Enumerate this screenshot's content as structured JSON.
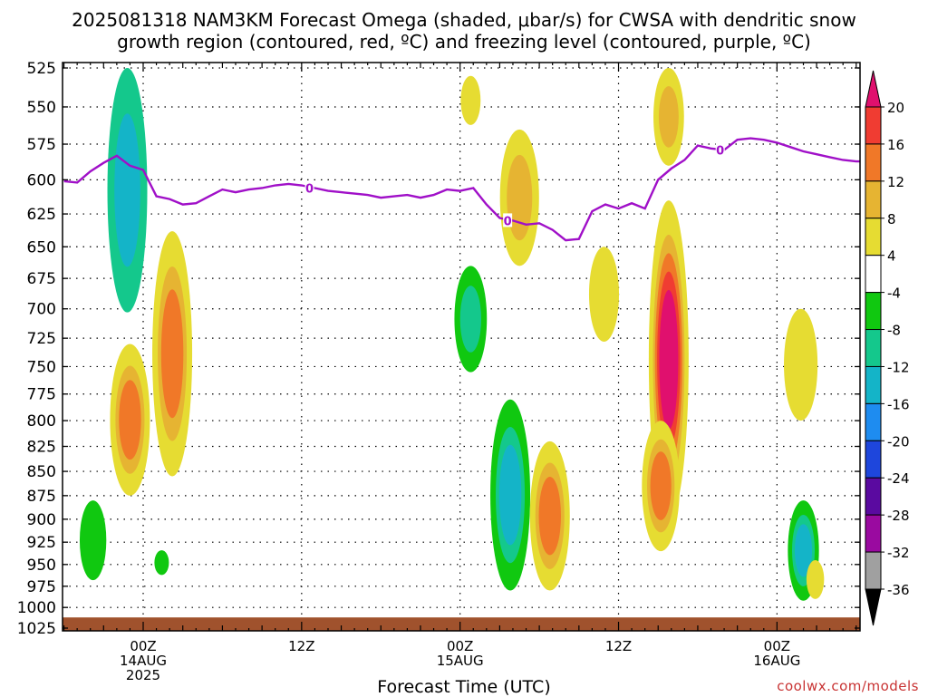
{
  "title": {
    "line1": "2025081318 NAM3KM Forecast Omega (shaded, μbar/s) for CWSA with dendritic snow",
    "line2": "growth region (contoured, red, ºC) and freezing level (contoured, purple, ºC)"
  },
  "xlabel": "Forecast Time (UTC)",
  "credit": "coolwx.com/models",
  "colors": {
    "background": "#ffffff",
    "grid": "#000000",
    "freezing_level": "#a010c8",
    "ground": "#a0522d"
  },
  "chart_data": {
    "type": "heatmap",
    "title": "2025081318 NAM3KM Forecast Omega (shaded, μbar/s) for CWSA with dendritic snow growth region (contoured, red, ºC) and freezing level (contoured, purple, ºC)",
    "xlabel": "Forecast Time (UTC)",
    "ylabel": "",
    "y_axis": {
      "units": "hPa",
      "reversed": true,
      "ticks": [
        525,
        550,
        575,
        600,
        625,
        650,
        675,
        700,
        725,
        750,
        775,
        800,
        825,
        850,
        875,
        900,
        925,
        950,
        975,
        1000,
        1025
      ]
    },
    "x_axis": {
      "units": "forecast hour",
      "range": [
        6,
        67
      ],
      "ticks": [
        {
          "hour": 12,
          "lines": [
            "00Z",
            "14AUG",
            "2025"
          ]
        },
        {
          "hour": 24,
          "lines": [
            "12Z"
          ]
        },
        {
          "hour": 36,
          "lines": [
            "00Z",
            "15AUG"
          ]
        },
        {
          "hour": 48,
          "lines": [
            "12Z"
          ]
        },
        {
          "hour": 60,
          "lines": [
            "00Z",
            "16AUG"
          ]
        }
      ]
    },
    "grid": true,
    "colorbar": {
      "units": "μbar/s",
      "labels": [
        "20",
        "16",
        "12",
        "8",
        "4",
        "-4",
        "-8",
        "-12",
        "-16",
        "-20",
        "-24",
        "-28",
        "-32",
        "-36"
      ],
      "colors": [
        "#e0106e",
        "#f03c32",
        "#f07828",
        "#e6b432",
        "#e6dc32",
        "#ffffff",
        "#10c810",
        "#14c88c",
        "#14b4c8",
        "#1e8cf0",
        "#1e46dc",
        "#5a0aa0",
        "#9a0aa0",
        "#a0a0a0"
      ]
    },
    "freezing_level": {
      "label": "0",
      "points": [
        [
          6,
          601
        ],
        [
          7,
          602
        ],
        [
          8,
          594
        ],
        [
          9,
          588
        ],
        [
          10,
          583
        ],
        [
          11,
          590
        ],
        [
          12,
          593
        ],
        [
          13,
          612
        ],
        [
          14,
          614
        ],
        [
          15,
          618
        ],
        [
          16,
          617
        ],
        [
          17,
          612
        ],
        [
          18,
          607
        ],
        [
          19,
          609
        ],
        [
          20,
          607
        ],
        [
          21,
          606
        ],
        [
          22,
          604
        ],
        [
          23,
          603
        ],
        [
          24,
          604
        ],
        [
          25,
          606
        ],
        [
          26,
          608
        ],
        [
          27,
          609
        ],
        [
          28,
          610
        ],
        [
          29,
          611
        ],
        [
          30,
          613
        ],
        [
          31,
          612
        ],
        [
          32,
          611
        ],
        [
          33,
          613
        ],
        [
          34,
          611
        ],
        [
          35,
          607
        ],
        [
          36,
          608
        ],
        [
          37,
          606
        ],
        [
          38,
          618
        ],
        [
          39,
          628
        ],
        [
          40,
          630
        ],
        [
          41,
          633
        ],
        [
          42,
          632
        ],
        [
          43,
          637
        ],
        [
          44,
          645
        ],
        [
          45,
          644
        ],
        [
          46,
          623
        ],
        [
          47,
          618
        ],
        [
          48,
          621
        ],
        [
          49,
          617
        ],
        [
          50,
          621
        ],
        [
          51,
          600
        ],
        [
          52,
          592
        ],
        [
          53,
          586
        ],
        [
          54,
          576
        ],
        [
          55,
          578
        ],
        [
          56,
          579
        ],
        [
          57,
          572
        ],
        [
          58,
          571
        ],
        [
          59,
          572
        ],
        [
          60,
          574
        ],
        [
          61,
          577
        ],
        [
          62,
          580
        ],
        [
          63,
          582
        ],
        [
          64,
          584
        ],
        [
          65,
          586
        ],
        [
          66,
          587
        ],
        [
          67,
          587
        ]
      ]
    },
    "omega_regions": [
      {
        "hour": 10.8,
        "p_top": 525,
        "p_bot": 703,
        "value": -8,
        "core": -12
      },
      {
        "hour": 14.2,
        "p_top": 638,
        "p_bot": 855,
        "value": 4,
        "core": 12
      },
      {
        "hour": 11.0,
        "p_top": 730,
        "p_bot": 875,
        "value": 4,
        "core": 12
      },
      {
        "hour": 8.2,
        "p_top": 880,
        "p_bot": 968,
        "value": -4
      },
      {
        "hour": 13.4,
        "p_top": 934,
        "p_bot": 962,
        "value": -4
      },
      {
        "hour": 36.8,
        "p_top": 530,
        "p_bot": 562,
        "value": 4
      },
      {
        "hour": 36.8,
        "p_top": 665,
        "p_bot": 755,
        "value": -4,
        "core": -8
      },
      {
        "hour": 40.5,
        "p_top": 565,
        "p_bot": 665,
        "value": 4,
        "core": 8
      },
      {
        "hour": 39.8,
        "p_top": 780,
        "p_bot": 980,
        "value": -4,
        "core": -12
      },
      {
        "hour": 42.8,
        "p_top": 820,
        "p_bot": 980,
        "value": 4,
        "core": 12
      },
      {
        "hour": 46.9,
        "p_top": 650,
        "p_bot": 728,
        "value": 4
      },
      {
        "hour": 51.8,
        "p_top": 525,
        "p_bot": 590,
        "value": 4,
        "core": 8
      },
      {
        "hour": 51.8,
        "p_top": 615,
        "p_bot": 900,
        "value": 4,
        "core": 20
      },
      {
        "hour": 51.2,
        "p_top": 800,
        "p_bot": 935,
        "value": 4,
        "core": 12
      },
      {
        "hour": 62.0,
        "p_top": 880,
        "p_bot": 992,
        "value": -4,
        "core": -12
      },
      {
        "hour": 61.8,
        "p_top": 700,
        "p_bot": 800,
        "value": 4
      },
      {
        "hour": 62.9,
        "p_top": 945,
        "p_bot": 990,
        "value": 4
      }
    ],
    "ground_pressure": 1012
  }
}
